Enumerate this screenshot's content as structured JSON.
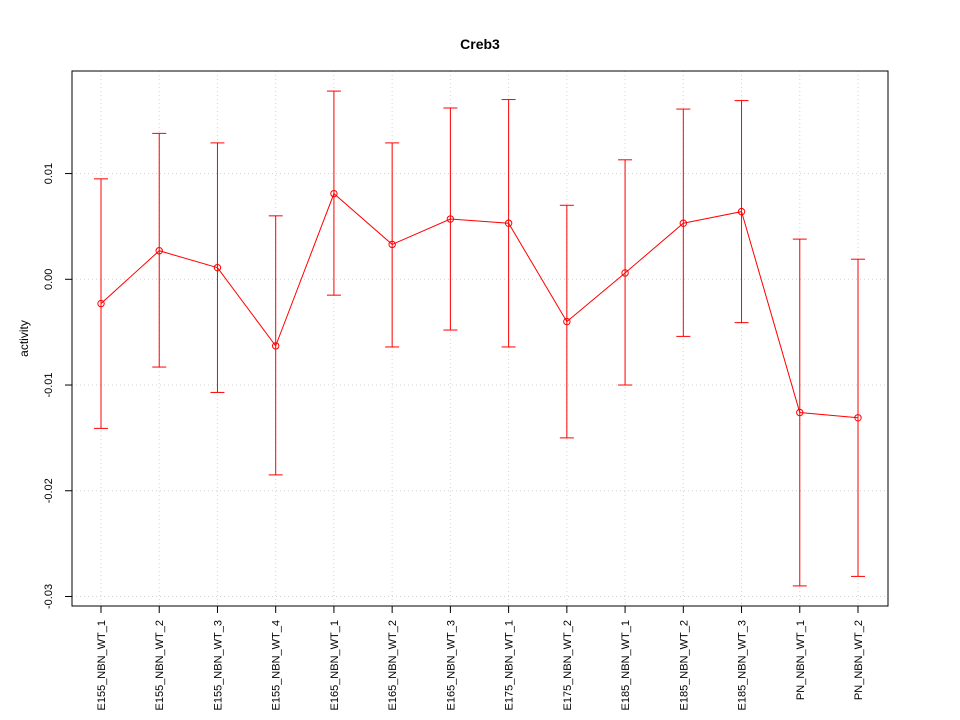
{
  "chart_data": {
    "type": "line",
    "title": "Creb3",
    "xlabel": "",
    "ylabel": "activity",
    "categories": [
      "E155_NBN_WT_1",
      "E155_NBN_WT_2",
      "E155_NBN_WT_3",
      "E155_NBN_WT_4",
      "E165_NBN_WT_1",
      "E165_NBN_WT_2",
      "E165_NBN_WT_3",
      "E175_NBN_WT_1",
      "E175_NBN_WT_2",
      "E185_NBN_WT_1",
      "E185_NBN_WT_2",
      "E185_NBN_WT_3",
      "PN_NBN_WT_1",
      "PN_NBN_WT_2"
    ],
    "series": [
      {
        "values": [
          -0.0023,
          0.0027,
          0.0011,
          -0.0063,
          0.0081,
          0.0033,
          0.0057,
          0.0053,
          -0.004,
          0.0006,
          0.0053,
          0.0064,
          -0.0126,
          -0.0131
        ],
        "upper": [
          0.0095,
          0.0138,
          0.0129,
          0.006,
          0.0178,
          0.0129,
          0.0162,
          0.017,
          0.007,
          0.0113,
          0.0161,
          0.0169,
          0.0038,
          0.0019
        ],
        "lower": [
          -0.0141,
          -0.0083,
          -0.0107,
          -0.0185,
          -0.0015,
          -0.0064,
          -0.0048,
          -0.0064,
          -0.015,
          -0.01,
          -0.0054,
          -0.0041,
          -0.029,
          -0.0281
        ],
        "color": "#ff0000"
      }
    ],
    "yticks": [
      -0.03,
      -0.02,
      -0.01,
      0.0,
      0.01
    ],
    "ytick_labels": [
      "-0.03",
      "-0.02",
      "-0.01",
      "0.00",
      "0.01"
    ],
    "ylim": [
      -0.0309,
      0.0197
    ],
    "grid": true
  }
}
